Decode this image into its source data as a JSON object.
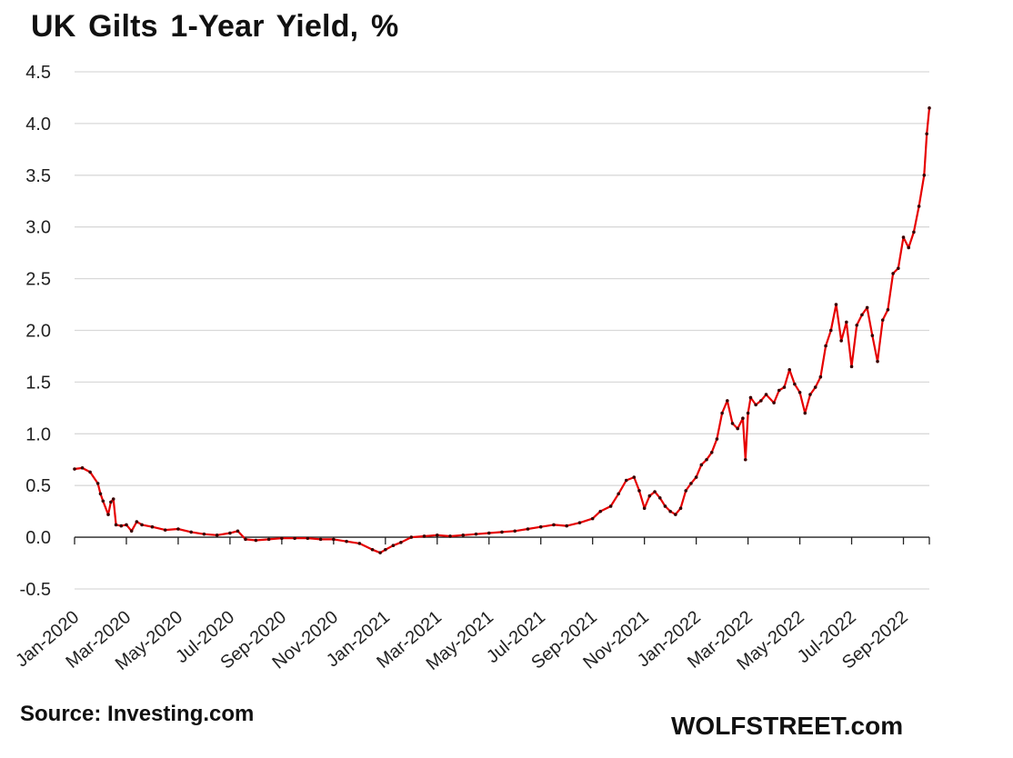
{
  "chart_data": {
    "type": "line",
    "title": "UK Gilts 1-Year Yield, %",
    "xlabel": "",
    "ylabel": "",
    "ylim": [
      -0.5,
      4.5
    ],
    "yticks": [
      4.5,
      4.0,
      3.5,
      3.0,
      2.5,
      2.0,
      1.5,
      1.0,
      0.5,
      0.0,
      -0.5
    ],
    "ytick_labels": [
      "4.5",
      "4.0",
      "3.5",
      "3.0",
      "2.5",
      "2.0",
      "1.5",
      "1.0",
      "0.5",
      "0.0",
      "-0.5"
    ],
    "xlim": [
      0,
      33
    ],
    "xticks": [
      0,
      2,
      4,
      6,
      8,
      10,
      12,
      14,
      16,
      18,
      20,
      22,
      24,
      26,
      28,
      30,
      32
    ],
    "xtick_labels": [
      "Jan-2020",
      "Mar-2020",
      "May-2020",
      "Jul-2020",
      "Sep-2020",
      "Nov-2020",
      "Jan-2021",
      "Mar-2021",
      "May-2021",
      "Jul-2021",
      "Sep-2021",
      "Nov-2021",
      "Jan-2022",
      "Mar-2022",
      "May-2022",
      "Jul-2022",
      "Sep-2022"
    ],
    "grid": true,
    "series": [
      {
        "name": "UK Gilts 1-Year Yield",
        "color": "#e60000",
        "x": [
          0,
          0.3,
          0.6,
          0.9,
          1.0,
          1.1,
          1.3,
          1.4,
          1.5,
          1.6,
          1.8,
          2.0,
          2.2,
          2.4,
          2.6,
          3.0,
          3.5,
          4.0,
          4.5,
          5.0,
          5.5,
          6.0,
          6.3,
          6.6,
          7.0,
          7.5,
          8.0,
          8.5,
          9.0,
          9.5,
          10.0,
          10.5,
          11.0,
          11.5,
          11.8,
          12.0,
          12.3,
          12.6,
          13.0,
          13.5,
          14.0,
          14.5,
          15.0,
          15.5,
          16.0,
          16.5,
          17.0,
          17.5,
          18.0,
          18.5,
          19.0,
          19.5,
          20.0,
          20.3,
          20.7,
          21.0,
          21.3,
          21.6,
          21.8,
          22.0,
          22.2,
          22.4,
          22.6,
          22.8,
          23.0,
          23.2,
          23.4,
          23.6,
          23.8,
          24.0,
          24.2,
          24.4,
          24.6,
          24.8,
          25.0,
          25.2,
          25.4,
          25.6,
          25.8,
          25.9,
          26.0,
          26.1,
          26.3,
          26.5,
          26.7,
          27.0,
          27.2,
          27.4,
          27.6,
          27.8,
          28.0,
          28.2,
          28.4,
          28.6,
          28.8,
          29.0,
          29.2,
          29.4,
          29.6,
          29.8,
          30.0,
          30.2,
          30.4,
          30.6,
          30.8,
          31.0,
          31.2,
          31.4,
          31.6,
          31.8,
          32.0,
          32.2,
          32.4,
          32.6,
          32.8,
          32.9,
          33.0
        ],
        "values": [
          0.66,
          0.67,
          0.63,
          0.52,
          0.42,
          0.35,
          0.22,
          0.34,
          0.37,
          0.12,
          0.11,
          0.12,
          0.06,
          0.15,
          0.12,
          0.1,
          0.07,
          0.08,
          0.05,
          0.03,
          0.02,
          0.04,
          0.06,
          -0.02,
          -0.03,
          -0.02,
          -0.01,
          -0.01,
          -0.01,
          -0.02,
          -0.02,
          -0.04,
          -0.06,
          -0.12,
          -0.15,
          -0.12,
          -0.08,
          -0.05,
          0.0,
          0.01,
          0.02,
          0.01,
          0.02,
          0.03,
          0.04,
          0.05,
          0.06,
          0.08,
          0.1,
          0.12,
          0.11,
          0.14,
          0.18,
          0.25,
          0.3,
          0.42,
          0.55,
          0.58,
          0.45,
          0.28,
          0.4,
          0.44,
          0.38,
          0.3,
          0.25,
          0.22,
          0.28,
          0.45,
          0.52,
          0.58,
          0.7,
          0.75,
          0.82,
          0.95,
          1.2,
          1.32,
          1.1,
          1.05,
          1.15,
          0.75,
          1.2,
          1.35,
          1.28,
          1.32,
          1.38,
          1.3,
          1.42,
          1.45,
          1.62,
          1.48,
          1.4,
          1.2,
          1.38,
          1.45,
          1.55,
          1.85,
          2.0,
          2.25,
          1.9,
          2.08,
          1.65,
          2.05,
          2.15,
          2.22,
          1.95,
          1.7,
          2.1,
          2.2,
          2.55,
          2.6,
          2.9,
          2.8,
          2.95,
          3.2,
          3.5,
          3.9,
          4.15
        ]
      }
    ]
  },
  "footer": {
    "source": "Source: Investing.com",
    "brand": "WOLFSTREET.com"
  }
}
